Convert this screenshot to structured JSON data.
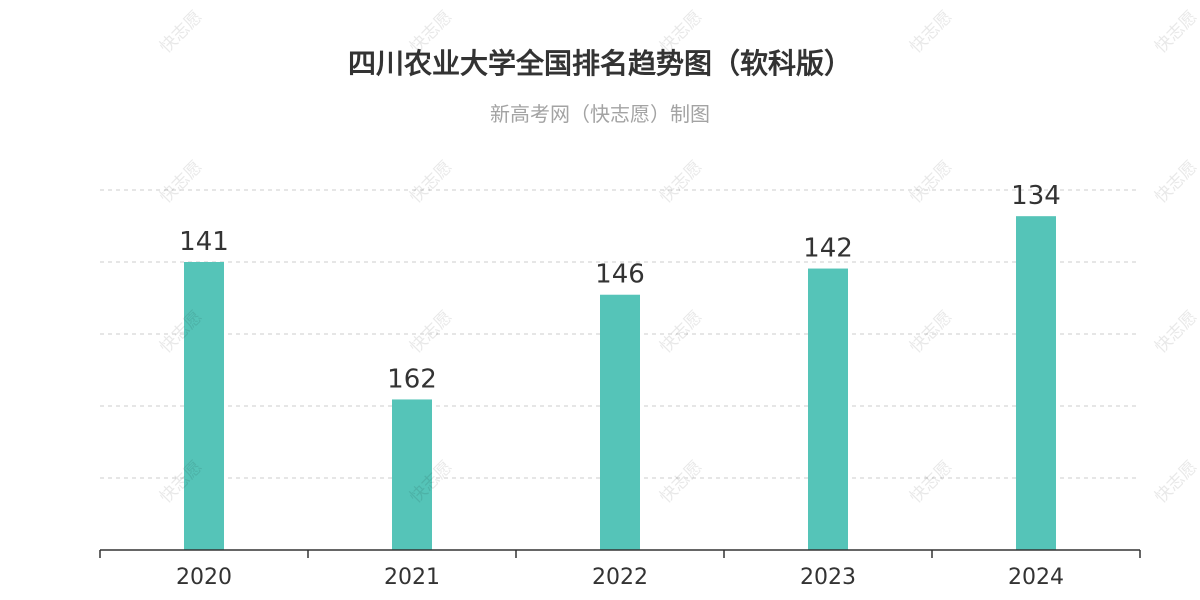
{
  "title": "四川农业大学全国排名趋势图（软科版）",
  "subtitle": "新高考网（快志愿）制图",
  "watermark": "快志愿",
  "colors": {
    "bar": "#55c4b8",
    "grid": "#cccccc",
    "axis": "#333333",
    "label": "#333333"
  },
  "chart_data": {
    "type": "bar",
    "categories": [
      "2020",
      "2021",
      "2022",
      "2023",
      "2024"
    ],
    "values": [
      141,
      162,
      146,
      142,
      134
    ],
    "y_inverted": true,
    "ylim": [
      185,
      130
    ],
    "grid": true,
    "xlabel": "",
    "ylabel": ""
  }
}
